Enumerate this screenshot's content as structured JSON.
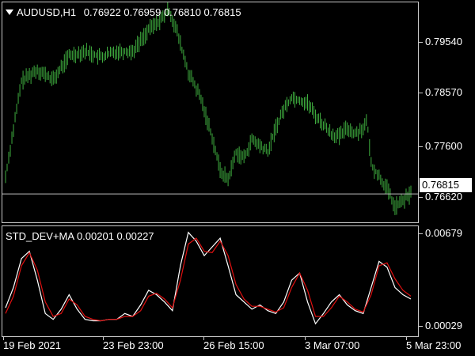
{
  "main": {
    "symbol": "AUDUSD,H1",
    "ohlc": "0.76922 0.76959 0.76810 0.76815",
    "current_price": "0.76815",
    "yaxis": [
      "0.79540",
      "0.78570",
      "0.77600",
      "0.76620"
    ],
    "colors": {
      "bars": "#3fae3f",
      "price_line": "#c0c0c0",
      "background": "#000000"
    }
  },
  "indicator": {
    "title": "STD_DEV+MA 0.00201 0.00227",
    "yaxis_top": "0.00679",
    "yaxis_bottom": "0.00029",
    "colors": {
      "std_dev": "#ffffff",
      "ma": "#e01010"
    }
  },
  "xaxis": [
    "19 Feb 2021",
    "23 Feb 23:00",
    "26 Feb 15:00",
    "3 Mar 07:00",
    "5 Mar 23:00"
  ],
  "chart_data": [
    {
      "type": "bar",
      "title": "AUDUSD,H1",
      "ylim": [
        0.7635,
        0.7995
      ],
      "x": [
        0,
        20,
        40,
        60,
        80,
        100,
        120,
        140,
        160,
        180,
        200,
        205,
        215,
        230,
        245,
        260,
        270,
        280,
        290,
        300,
        310,
        320,
        330,
        340,
        350,
        360,
        370,
        380,
        390,
        400,
        410,
        420,
        430,
        440,
        450,
        455,
        460,
        470,
        480,
        490,
        500,
        510
      ],
      "y": [
        0.771,
        0.7866,
        0.7885,
        0.7868,
        0.7908,
        0.7915,
        0.7905,
        0.7915,
        0.7915,
        0.795,
        0.7972,
        0.7985,
        0.795,
        0.788,
        0.784,
        0.7775,
        0.772,
        0.7705,
        0.775,
        0.774,
        0.777,
        0.776,
        0.775,
        0.779,
        0.782,
        0.784,
        0.7835,
        0.783,
        0.781,
        0.7795,
        0.778,
        0.7775,
        0.779,
        0.778,
        0.779,
        0.78,
        0.773,
        0.771,
        0.769,
        0.766,
        0.767,
        0.7682
      ]
    },
    {
      "type": "line",
      "title": "STD_DEV+MA",
      "ylim": [
        0.00029,
        0.00679
      ],
      "x": [
        0,
        10,
        20,
        30,
        40,
        50,
        60,
        70,
        80,
        90,
        100,
        110,
        120,
        130,
        140,
        150,
        160,
        170,
        180,
        190,
        200,
        210,
        220,
        230,
        240,
        250,
        260,
        270,
        280,
        290,
        300,
        310,
        320,
        330,
        340,
        350,
        360,
        370,
        380,
        390,
        400,
        410,
        420,
        430,
        440,
        450,
        460,
        470,
        480,
        490,
        500,
        510
      ],
      "series": [
        {
          "values": [
            0.0016,
            0.003,
            0.005,
            0.0055,
            0.0035,
            0.0012,
            0.0008,
            0.0015,
            0.0025,
            0.0015,
            0.0008,
            0.0007,
            0.0007,
            0.0008,
            0.0008,
            0.0012,
            0.001,
            0.0018,
            0.0028,
            0.0025,
            0.002,
            0.0014,
            0.0045,
            0.0068,
            0.0062,
            0.0052,
            0.0058,
            0.0064,
            0.0045,
            0.0025,
            0.002,
            0.0015,
            0.0018,
            0.0014,
            0.0012,
            0.002,
            0.0035,
            0.004,
            0.002,
            0.0005,
            0.0012,
            0.002,
            0.0025,
            0.0018,
            0.0014,
            0.0012,
            0.003,
            0.0048,
            0.0044,
            0.003,
            0.0025,
            0.0022
          ]
        },
        {
          "values": [
            0.0012,
            0.0024,
            0.0045,
            0.0054,
            0.0042,
            0.002,
            0.001,
            0.0012,
            0.0022,
            0.0018,
            0.001,
            0.0008,
            0.0007,
            0.0008,
            0.0008,
            0.001,
            0.001,
            0.0014,
            0.0024,
            0.0026,
            0.0022,
            0.0016,
            0.0035,
            0.006,
            0.0064,
            0.0055,
            0.0054,
            0.0062,
            0.0052,
            0.0032,
            0.0022,
            0.0017,
            0.0017,
            0.0015,
            0.0013,
            0.0016,
            0.003,
            0.004,
            0.0028,
            0.001,
            0.001,
            0.0016,
            0.0024,
            0.002,
            0.0015,
            0.0013,
            0.0025,
            0.0045,
            0.0047,
            0.0036,
            0.0028,
            0.0024
          ]
        }
      ]
    }
  ]
}
